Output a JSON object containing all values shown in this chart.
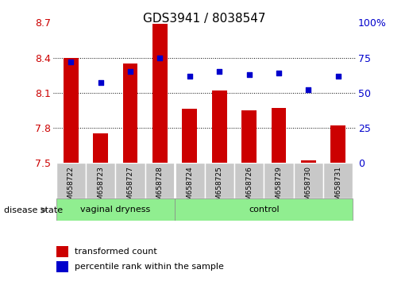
{
  "title": "GDS3941 / 8038547",
  "samples": [
    "GSM658722",
    "GSM658723",
    "GSM658727",
    "GSM658728",
    "GSM658724",
    "GSM658725",
    "GSM658726",
    "GSM658729",
    "GSM658730",
    "GSM658731"
  ],
  "bar_values": [
    8.4,
    7.75,
    8.35,
    8.69,
    7.96,
    8.12,
    7.95,
    7.97,
    7.52,
    7.82
  ],
  "dot_values": [
    72,
    57,
    65,
    75,
    62,
    65,
    63,
    64,
    52,
    62
  ],
  "ylim_left": [
    7.5,
    8.7
  ],
  "ylim_right": [
    0,
    100
  ],
  "yticks_left": [
    7.5,
    7.8,
    8.1,
    8.4,
    8.7
  ],
  "yticks_right": [
    0,
    25,
    50,
    75,
    100
  ],
  "ytick_labels_left": [
    "7.5",
    "7.8",
    "8.1",
    "8.4",
    "8.7"
  ],
  "ytick_labels_right": [
    "0",
    "25",
    "50",
    "75",
    "100%"
  ],
  "group_labels": [
    "vaginal dryness",
    "control"
  ],
  "bar_color": "#CC0000",
  "dot_color": "#0000CC",
  "bar_bottom": 7.5,
  "legend_bar_label": "transformed count",
  "legend_dot_label": "percentile rank within the sample",
  "disease_state_label": "disease state",
  "tick_label_color_left": "#CC0000",
  "tick_label_color_right": "#0000CC",
  "green_color": "#90EE90",
  "gray_color": "#C8C8C8"
}
